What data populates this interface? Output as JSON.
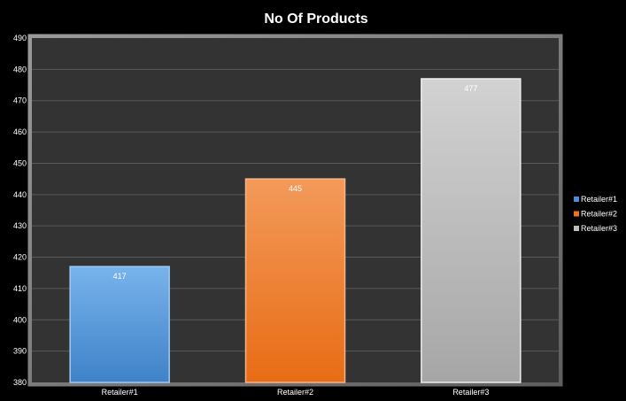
{
  "chart_data": {
    "type": "bar",
    "title": "No Of Products",
    "xlabel": "",
    "ylabel": "",
    "categories": [
      "Retailer#1",
      "Retailer#2",
      "Retailer#3"
    ],
    "series": [
      {
        "name": "Retailer#1",
        "values": [
          417,
          null,
          null
        ]
      },
      {
        "name": "Retailer#2",
        "values": [
          null,
          445,
          null
        ]
      },
      {
        "name": "Retailer#3",
        "values": [
          null,
          null,
          477
        ]
      }
    ],
    "values": [
      417,
      445,
      477
    ],
    "data_labels": [
      "417",
      "445",
      "477"
    ],
    "ylim": [
      380,
      490
    ],
    "yticks": [
      380,
      390,
      400,
      410,
      420,
      430,
      440,
      450,
      460,
      470,
      480,
      490
    ],
    "ytick_labels": [
      "380",
      "390",
      "400",
      "410",
      "420",
      "430",
      "440",
      "450",
      "460",
      "470",
      "480",
      "490"
    ],
    "grid": true,
    "legend": {
      "position": "right",
      "entries": [
        "Retailer#1",
        "Retailer#2",
        "Retailer#3"
      ]
    },
    "colors": {
      "background": "#000000",
      "plot_area": "#333333",
      "gridline": "#5a5a5a",
      "text": "#ffffff",
      "bar_1": "#4a8fd4",
      "bar_2": "#ec7420",
      "bar_3": "#bdbdbd"
    }
  }
}
